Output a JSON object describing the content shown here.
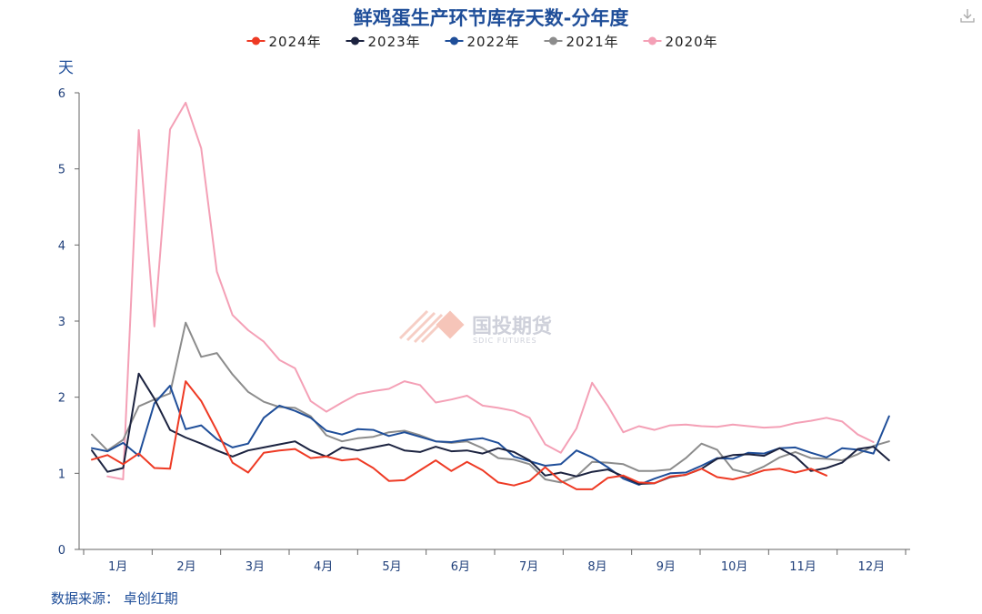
{
  "chart_data": {
    "type": "line",
    "title": "鲜鸡蛋生产环节库存天数-分年度",
    "ylabel": "天",
    "xlabel": "",
    "ylim": [
      0,
      6
    ],
    "yticks": [
      "0",
      "1",
      "2",
      "3",
      "4",
      "5",
      "6"
    ],
    "month_labels": [
      "1月",
      "2月",
      "3月",
      "4月",
      "5月",
      "6月",
      "7月",
      "8月",
      "9月",
      "10月",
      "11月",
      "12月"
    ],
    "x_unit": "week of year",
    "x_range": [
      1,
      53
    ],
    "grid": false,
    "legend_position": "top-center",
    "series": [
      {
        "name": "2024年",
        "color": "#ee3a24",
        "x": [
          1,
          2,
          3,
          4,
          5,
          6,
          7,
          8,
          9,
          10,
          11,
          12,
          13,
          14,
          15,
          16,
          17,
          18,
          19,
          20,
          21,
          22,
          23,
          24,
          25,
          26,
          27,
          28,
          29,
          30,
          31,
          32,
          33,
          34,
          35,
          36,
          37,
          38,
          39,
          40,
          41,
          42,
          43,
          44,
          45,
          46,
          47,
          48
        ],
        "values": [
          1.18,
          1.24,
          1.12,
          1.26,
          1.07,
          1.06,
          2.21,
          1.95,
          1.56,
          1.14,
          1.01,
          1.27,
          1.3,
          1.32,
          1.2,
          1.22,
          1.17,
          1.19,
          1.07,
          0.9,
          0.91,
          1.04,
          1.17,
          1.03,
          1.15,
          1.04,
          0.88,
          0.84,
          0.9,
          1.08,
          0.9,
          0.79,
          0.79,
          0.94,
          0.97,
          0.88,
          0.87,
          0.96,
          0.98,
          1.06,
          0.95,
          0.92,
          0.97,
          1.04,
          1.06,
          1.01,
          1.06,
          0.97
        ]
      },
      {
        "name": "2023年",
        "color": "#1c2340",
        "x": [
          1,
          2,
          3,
          4,
          5,
          6,
          7,
          8,
          9,
          10,
          11,
          12,
          13,
          14,
          15,
          16,
          17,
          18,
          19,
          20,
          21,
          22,
          23,
          24,
          25,
          26,
          27,
          28,
          29,
          30,
          31,
          32,
          33,
          34,
          35,
          36,
          37,
          38,
          39,
          40,
          41,
          42,
          43,
          44,
          45,
          46,
          47,
          48,
          49,
          50,
          51,
          52
        ],
        "values": [
          1.3,
          1.02,
          1.07,
          2.31,
          1.98,
          1.57,
          1.47,
          1.39,
          1.3,
          1.22,
          1.3,
          1.34,
          1.38,
          1.42,
          1.3,
          1.22,
          1.34,
          1.3,
          1.34,
          1.38,
          1.3,
          1.28,
          1.35,
          1.29,
          1.3,
          1.26,
          1.33,
          1.28,
          1.17,
          0.97,
          1.01,
          0.96,
          1.02,
          1.05,
          0.96,
          0.86,
          0.87,
          0.95,
          0.98,
          1.06,
          1.19,
          1.24,
          1.25,
          1.23,
          1.33,
          1.22,
          1.03,
          1.07,
          1.14,
          1.32,
          1.35,
          1.17
        ]
      },
      {
        "name": "2022年",
        "color": "#1f4e99",
        "x": [
          1,
          2,
          3,
          4,
          5,
          6,
          7,
          8,
          9,
          10,
          11,
          12,
          13,
          14,
          15,
          16,
          17,
          18,
          19,
          20,
          21,
          22,
          23,
          24,
          25,
          26,
          27,
          28,
          29,
          30,
          31,
          32,
          33,
          34,
          35,
          36,
          37,
          38,
          39,
          40,
          41,
          42,
          43,
          44,
          45,
          46,
          47,
          48,
          49,
          50,
          51,
          52
        ],
        "values": [
          1.33,
          1.29,
          1.4,
          1.23,
          1.92,
          2.15,
          1.58,
          1.63,
          1.45,
          1.34,
          1.39,
          1.73,
          1.89,
          1.82,
          1.73,
          1.56,
          1.51,
          1.58,
          1.57,
          1.49,
          1.54,
          1.48,
          1.42,
          1.41,
          1.44,
          1.46,
          1.4,
          1.22,
          1.16,
          1.1,
          1.12,
          1.3,
          1.21,
          1.08,
          0.93,
          0.85,
          0.93,
          1.0,
          1.01,
          1.1,
          1.2,
          1.19,
          1.27,
          1.26,
          1.33,
          1.34,
          1.27,
          1.21,
          1.33,
          1.31,
          1.26,
          1.75
        ]
      },
      {
        "name": "2021年",
        "color": "#8c8c8c",
        "x": [
          1,
          2,
          3,
          4,
          5,
          6,
          7,
          8,
          9,
          10,
          11,
          12,
          13,
          14,
          15,
          16,
          17,
          18,
          19,
          20,
          21,
          22,
          23,
          24,
          25,
          26,
          27,
          28,
          29,
          30,
          31,
          32,
          33,
          34,
          35,
          36,
          37,
          38,
          39,
          40,
          41,
          42,
          43,
          44,
          45,
          46,
          47,
          48,
          49,
          50,
          51,
          52
        ],
        "values": [
          1.51,
          1.3,
          1.44,
          1.88,
          1.97,
          2.05,
          2.98,
          2.53,
          2.58,
          2.3,
          2.07,
          1.94,
          1.87,
          1.86,
          1.75,
          1.5,
          1.42,
          1.46,
          1.48,
          1.54,
          1.56,
          1.5,
          1.42,
          1.4,
          1.42,
          1.33,
          1.2,
          1.18,
          1.12,
          0.92,
          0.88,
          0.96,
          1.15,
          1.14,
          1.12,
          1.03,
          1.03,
          1.05,
          1.2,
          1.39,
          1.31,
          1.05,
          1.0,
          1.09,
          1.21,
          1.28,
          1.2,
          1.19,
          1.17,
          1.25,
          1.36,
          1.42
        ]
      },
      {
        "name": "2020年",
        "color": "#f4a0b6",
        "x": [
          2,
          3,
          4,
          5,
          6,
          7,
          8,
          9,
          10,
          11,
          12,
          13,
          14,
          15,
          16,
          17,
          18,
          19,
          20,
          21,
          22,
          23,
          24,
          25,
          26,
          27,
          28,
          29,
          30,
          31,
          32,
          33,
          34,
          35,
          36,
          37,
          38,
          39,
          40,
          41,
          42,
          43,
          44,
          45,
          46,
          47,
          48,
          49,
          50,
          51
        ],
        "values": [
          0.96,
          0.92,
          5.51,
          2.93,
          5.52,
          5.87,
          5.27,
          3.65,
          3.08,
          2.88,
          2.73,
          2.49,
          2.38,
          1.95,
          1.81,
          1.93,
          2.04,
          2.08,
          2.11,
          2.21,
          2.16,
          1.93,
          1.97,
          2.02,
          1.89,
          1.86,
          1.82,
          1.73,
          1.38,
          1.27,
          1.59,
          2.19,
          1.89,
          1.54,
          1.62,
          1.57,
          1.63,
          1.64,
          1.62,
          1.61,
          1.64,
          1.62,
          1.6,
          1.61,
          1.66,
          1.69,
          1.73,
          1.68,
          1.51,
          1.41
        ]
      }
    ]
  },
  "source_text": "数据来源： 卓创红期",
  "watermark": {
    "name": "国投期货",
    "sub": "SDIC FUTURES"
  },
  "icons": {
    "download": "download-icon"
  }
}
